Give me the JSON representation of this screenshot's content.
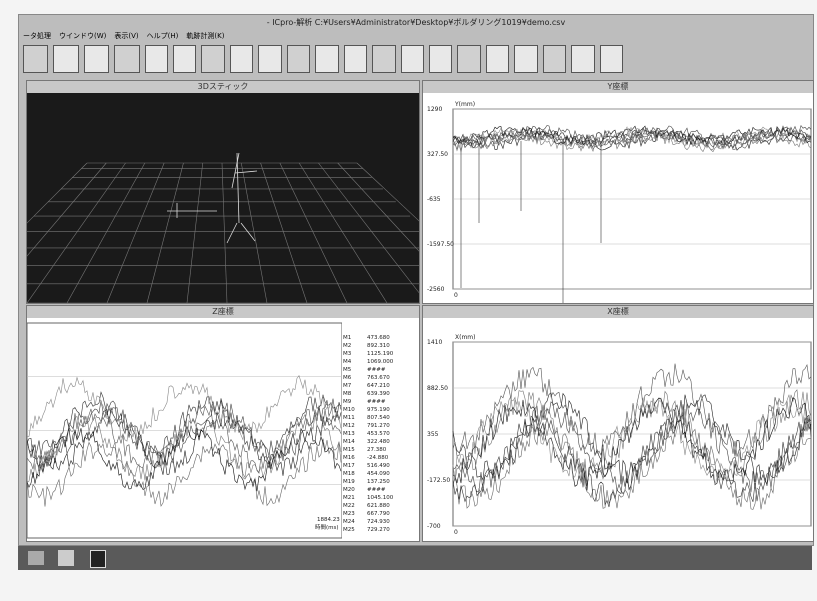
{
  "window": {
    "title": "- ICpro-解析 C:¥Users¥Administrator¥Desktop¥ボルダリング1019¥demo.csv",
    "menu": [
      "ータ処理",
      "ウインドウ(W)",
      "表示(V)",
      "ヘルプ(H)",
      "軌跡計測(K)"
    ]
  },
  "panels": {
    "stick": {
      "title": "3Dスティック"
    },
    "y": {
      "title": "Y座標",
      "unit": "Y(mm)",
      "ticks": [
        "1290",
        "327.50",
        "-635",
        "-1597.50",
        "-2560"
      ],
      "x0": "0"
    },
    "z": {
      "title": "Z座標",
      "time_value": "1884.23",
      "time_label": "時間(ms)",
      "markers": [
        {
          "name": "M1",
          "value": "473.680"
        },
        {
          "name": "M2",
          "value": "892.310"
        },
        {
          "name": "M3",
          "value": "1125.190"
        },
        {
          "name": "M4",
          "value": "1069.000"
        },
        {
          "name": "M5",
          "value": "####"
        },
        {
          "name": "M6",
          "value": "763.670"
        },
        {
          "name": "M7",
          "value": "647.210"
        },
        {
          "name": "M8",
          "value": "639.390"
        },
        {
          "name": "M9",
          "value": "####"
        },
        {
          "name": "M10",
          "value": "975.190"
        },
        {
          "name": "M11",
          "value": "807.540"
        },
        {
          "name": "M12",
          "value": "791.270"
        },
        {
          "name": "M13",
          "value": "453.570"
        },
        {
          "name": "M14",
          "value": "322.480"
        },
        {
          "name": "M15",
          "value": "27.380"
        },
        {
          "name": "M16",
          "value": "-24.880"
        },
        {
          "name": "M17",
          "value": "516.490"
        },
        {
          "name": "M18",
          "value": "454.090"
        },
        {
          "name": "M19",
          "value": "137.250"
        },
        {
          "name": "M20",
          "value": "####"
        },
        {
          "name": "M21",
          "value": "1045.100"
        },
        {
          "name": "M22",
          "value": "621.880"
        },
        {
          "name": "M23",
          "value": "667.790"
        },
        {
          "name": "M24",
          "value": "724.930"
        },
        {
          "name": "M25",
          "value": "729.270"
        }
      ]
    },
    "x": {
      "title": "X座標",
      "unit": "X(mm)",
      "ticks": [
        "1410",
        "882.50",
        "355",
        "-172.50",
        "-700"
      ],
      "x0": "0"
    }
  }
}
